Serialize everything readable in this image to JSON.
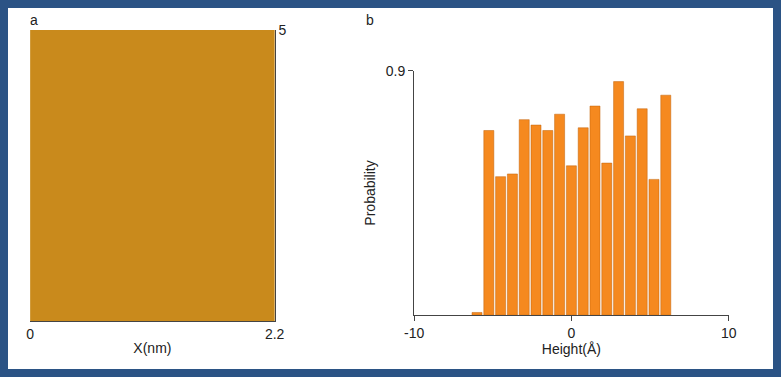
{
  "chart_data": [
    {
      "type": "image",
      "panel_label": "a",
      "xlabel": "X(nm)",
      "xlim": [
        0,
        2.2
      ],
      "xticks": [
        0,
        2.2
      ],
      "ylim": [
        0,
        5
      ],
      "yticks": [
        5
      ],
      "color": "#c98a1c",
      "grid": false
    },
    {
      "type": "histogram",
      "panel_label": "b",
      "xlabel": "Height(Å)",
      "ylabel": "Probability",
      "bins": [
        -6.375,
        -5.625,
        -4.875,
        -4.125,
        -3.375,
        -2.625,
        -1.875,
        -1.125,
        -0.375,
        0.375,
        1.125,
        1.875,
        2.625,
        3.375,
        4.125,
        4.875,
        5.625,
        6.375
      ],
      "values": [
        0.01,
        0.68,
        0.51,
        0.52,
        0.72,
        0.7,
        0.68,
        0.74,
        0.55,
        0.69,
        0.77,
        0.56,
        0.86,
        0.66,
        0.76,
        0.5,
        0.81
      ],
      "color": "#f5891f",
      "xlim": [
        -10,
        10
      ],
      "xticks": [
        -10,
        0,
        10
      ],
      "ylim": [
        0,
        0.9
      ],
      "yticks": [
        0.9
      ],
      "grid": false
    }
  ]
}
